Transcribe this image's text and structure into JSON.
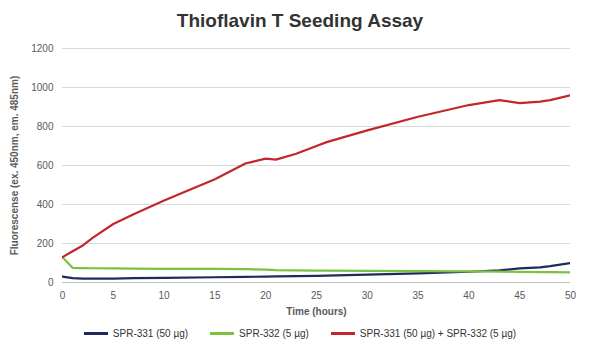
{
  "chart_data": {
    "type": "line",
    "title": "Thioflavin T Seeding Assay",
    "x_label": "Time (hours)",
    "y_label": "Fluorescense (ex. 450nm, em. 485nm)",
    "x": [
      0,
      1,
      2,
      3,
      5,
      7,
      10,
      15,
      18,
      20,
      21,
      23,
      25,
      26,
      30,
      35,
      40,
      43,
      45,
      47,
      48,
      50
    ],
    "series": [
      {
        "name": "SPR-331 (50 µg)",
        "color": "#1f2a5c",
        "values": [
          30,
          22,
          20,
          20,
          20,
          22,
          24,
          27,
          29,
          30,
          31,
          33,
          34,
          35,
          40,
          47,
          55,
          62,
          72,
          78,
          84,
          100
        ]
      },
      {
        "name": "SPR-332 (5 µg)",
        "color": "#7cc242",
        "values": [
          130,
          75,
          74,
          73,
          72,
          71,
          70,
          70,
          69,
          66,
          63,
          62,
          61,
          61,
          60,
          58,
          57,
          56,
          54,
          53,
          53,
          52
        ]
      },
      {
        "name": "SPR-331 (50 µg) + SPR-332 (5 µg)",
        "color": "#c1272d",
        "values": [
          130,
          160,
          190,
          230,
          300,
          350,
          420,
          530,
          610,
          635,
          630,
          660,
          700,
          720,
          780,
          850,
          910,
          935,
          920,
          928,
          935,
          960
        ]
      }
    ],
    "xlim": [
      0,
      50
    ],
    "xticks": [
      0,
      5,
      10,
      15,
      20,
      25,
      30,
      35,
      40,
      45,
      50
    ],
    "ylim": [
      0,
      1200
    ],
    "yticks": [
      0,
      200,
      400,
      600,
      800,
      1000,
      1200
    ],
    "grid": true,
    "legend": "bottom"
  }
}
